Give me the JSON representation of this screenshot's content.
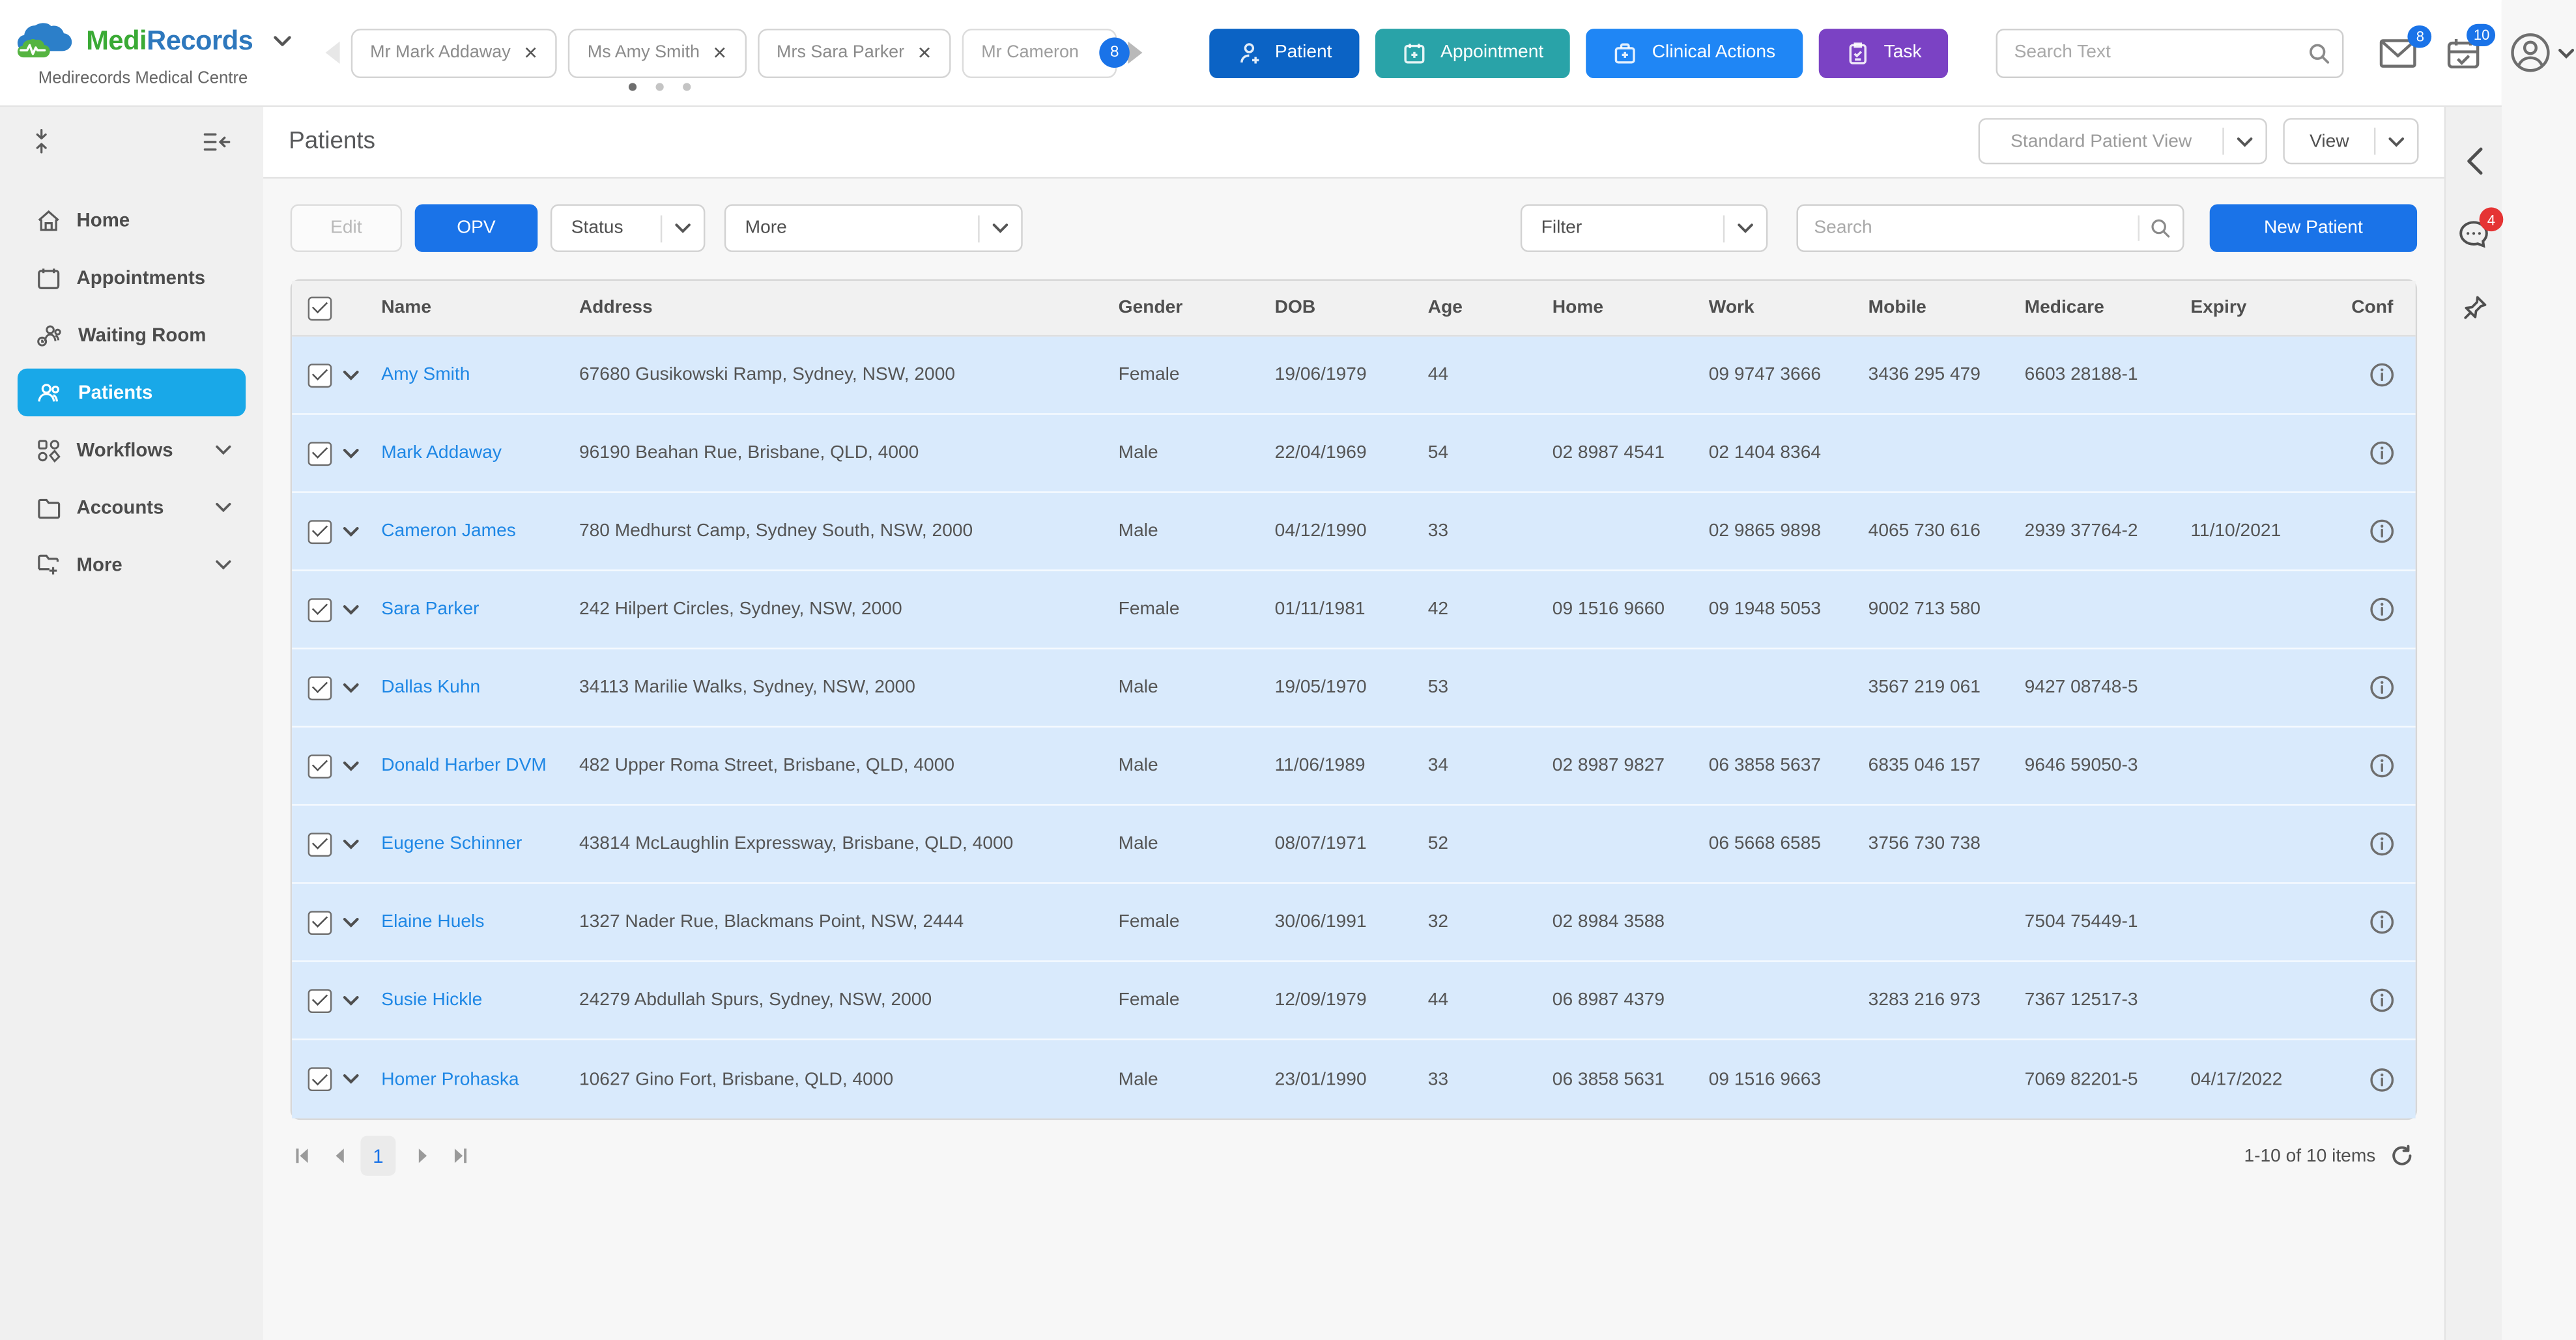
{
  "brand": {
    "name_medi": "Medi",
    "name_records": "Records",
    "org": "Medirecords Medical Centre"
  },
  "patient_tabs": [
    {
      "label": "Mr Mark Addaway",
      "closable": true,
      "badge": "",
      "muted": false
    },
    {
      "label": "Ms Amy Smith",
      "closable": true,
      "badge": "",
      "muted": false
    },
    {
      "label": "Mrs Sara Parker",
      "closable": true,
      "badge": "",
      "muted": false
    },
    {
      "label": "Mr Cameron",
      "closable": false,
      "badge": "8",
      "muted": true
    }
  ],
  "topbar": {
    "actions": [
      {
        "label": "Patient",
        "color": "#0b63c5"
      },
      {
        "label": "Appointment",
        "color": "#29a3a8"
      },
      {
        "label": "Clinical Actions",
        "color": "#1f86f5"
      },
      {
        "label": "Task",
        "color": "#7b42c4"
      }
    ],
    "search_placeholder": "Search Text",
    "mail_badge": "8",
    "tasks_badge": "10"
  },
  "sidebar": {
    "items": [
      {
        "label": "Home"
      },
      {
        "label": "Appointments"
      },
      {
        "label": "Waiting Room"
      },
      {
        "label": "Patients"
      },
      {
        "label": "Workflows"
      },
      {
        "label": "Accounts"
      },
      {
        "label": "More"
      }
    ]
  },
  "page": {
    "title": "Patients",
    "preset": "Standard Patient View",
    "view": "View"
  },
  "toolbar": {
    "edit": "Edit",
    "opv": "OPV",
    "status": "Status",
    "more": "More",
    "filter": "Filter",
    "search_placeholder": "Search",
    "new_patient": "New Patient"
  },
  "table": {
    "columns": [
      "Name",
      "Address",
      "Gender",
      "DOB",
      "Age",
      "Home",
      "Work",
      "Mobile",
      "Medicare",
      "Expiry",
      "Conf"
    ],
    "rows": [
      {
        "name": "Amy Smith",
        "address": "67680 Gusikowski Ramp, Sydney, NSW, 2000",
        "gender": "Female",
        "dob": "19/06/1979",
        "age": "44",
        "home": "",
        "work": "09 9747 3666",
        "mobile": "3436 295 479",
        "medicare": "6603 28188-1",
        "expiry": ""
      },
      {
        "name": "Mark Addaway",
        "address": "96190 Beahan Rue,  Brisbane, QLD, 4000",
        "gender": "Male",
        "dob": "22/04/1969",
        "age": "54",
        "home": "02 8987 4541",
        "work": "02 1404 8364",
        "mobile": "",
        "medicare": "",
        "expiry": ""
      },
      {
        "name": "Cameron James",
        "address": "780 Medhurst Camp, Sydney South, NSW, 2000",
        "gender": "Male",
        "dob": "04/12/1990",
        "age": "33",
        "home": "",
        "work": "02 9865 9898",
        "mobile": "4065 730 616",
        "medicare": "2939 37764-2",
        "expiry": "11/10/2021"
      },
      {
        "name": "Sara Parker",
        "address": "242 Hilpert Circles, Sydney, NSW, 2000",
        "gender": "Female",
        "dob": "01/11/1981",
        "age": "42",
        "home": "09 1516 9660",
        "work": "09 1948 5053",
        "mobile": "9002 713 580",
        "medicare": "",
        "expiry": ""
      },
      {
        "name": "Dallas Kuhn",
        "address": "34113 Marilie Walks, Sydney, NSW, 2000",
        "gender": "Male",
        "dob": "19/05/1970",
        "age": "53",
        "home": "",
        "work": "",
        "mobile": "3567 219 061",
        "medicare": "9427 08748-5",
        "expiry": ""
      },
      {
        "name": "Donald Harber DVM",
        "address": "482 Upper Roma Street, Brisbane, QLD, 4000",
        "gender": "Male",
        "dob": "11/06/1989",
        "age": "34",
        "home": "02 8987 9827",
        "work": "06 3858 5637",
        "mobile": "6835 046 157",
        "medicare": "9646 59050-3",
        "expiry": ""
      },
      {
        "name": "Eugene Schinner",
        "address": "43814 McLaughlin Expressway, Brisbane, QLD, 4000",
        "gender": "Male",
        "dob": "08/07/1971",
        "age": "52",
        "home": "",
        "work": "06 5668 6585",
        "mobile": "3756 730 738",
        "medicare": "",
        "expiry": ""
      },
      {
        "name": "Elaine Huels",
        "address": "1327 Nader Rue, Blackmans Point, NSW, 2444",
        "gender": "Female",
        "dob": "30/06/1991",
        "age": "32",
        "home": "02 8984 3588",
        "work": "",
        "mobile": "",
        "medicare": "7504 75449-1",
        "expiry": ""
      },
      {
        "name": "Susie Hickle",
        "address": "24279 Abdullah Spurs, Sydney, NSW, 2000",
        "gender": "Female",
        "dob": "12/09/1979",
        "age": "44",
        "home": "06 8987 4379",
        "work": "",
        "mobile": "3283 216 973",
        "medicare": "7367 12517-3",
        "expiry": ""
      },
      {
        "name": "Homer Prohaska",
        "address": "10627 Gino Fort, Brisbane, QLD, 4000",
        "gender": "Male",
        "dob": "23/01/1990",
        "age": "33",
        "home": "06 3858 5631",
        "work": "09 1516 9663",
        "mobile": "",
        "medicare": "7069 82201-5",
        "expiry": "04/17/2022"
      }
    ]
  },
  "pagination": {
    "page": "1",
    "summary": "1-10 of 10 items"
  },
  "rail": {
    "chat_badge": "4"
  },
  "colors": {
    "accent_blue": "#1a73e8",
    "active_nav": "#19a8e8",
    "row_bg": "#d9eafc",
    "link_blue": "#1e87e5",
    "badge_red": "#e53434"
  }
}
